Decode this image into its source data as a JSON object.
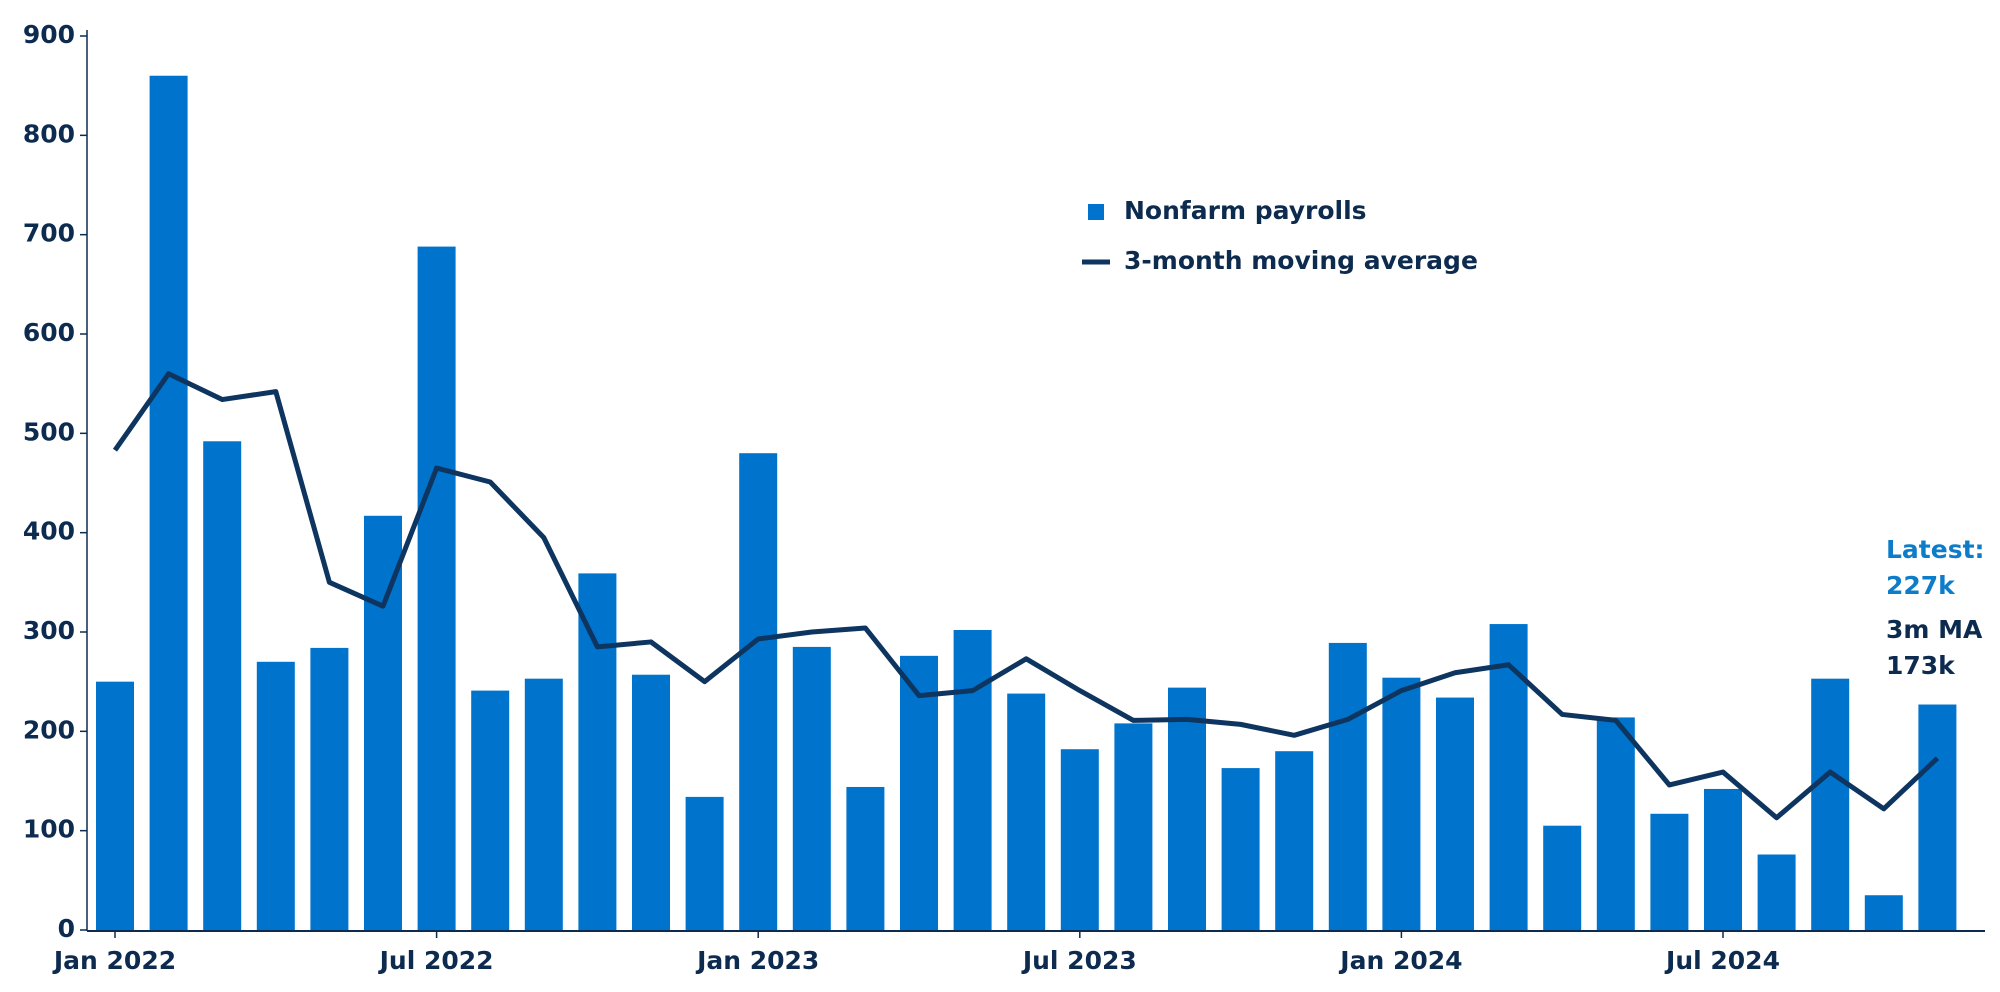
{
  "chart_data": {
    "type": "bar",
    "categories": [
      "Jan 2022",
      null,
      null,
      null,
      null,
      null,
      "Jul 2022",
      null,
      null,
      null,
      null,
      null,
      "Jan 2023",
      null,
      null,
      null,
      null,
      null,
      "Jul 2023",
      null,
      null,
      null,
      null,
      null,
      "Jan 2024",
      null,
      null,
      null,
      null,
      null,
      "Jul 2024",
      null,
      null,
      null,
      null
    ],
    "series": [
      {
        "name": "Nonfarm payrolls",
        "type": "bar",
        "color": "#0074cc",
        "values": [
          250,
          860,
          492,
          270,
          284,
          417,
          688,
          241,
          253,
          359,
          257,
          134,
          480,
          285,
          144,
          276,
          302,
          238,
          182,
          208,
          244,
          163,
          180,
          289,
          254,
          234,
          308,
          105,
          214,
          117,
          142,
          76,
          253,
          35,
          227
        ]
      },
      {
        "name": "3-month moving average",
        "type": "line",
        "color": "#0d3560",
        "values": [
          483,
          560,
          534,
          542,
          350,
          326,
          465,
          451,
          395,
          285,
          290,
          250,
          293,
          300,
          304,
          236,
          241,
          273,
          241,
          211,
          212,
          207,
          196,
          212,
          241,
          259,
          267,
          217,
          211,
          146,
          159,
          113,
          159,
          122,
          173
        ]
      }
    ],
    "ylim": [
      0,
      900
    ],
    "yticks": [
      0,
      100,
      200,
      300,
      400,
      500,
      600,
      700,
      800,
      900
    ],
    "annotations": [
      {
        "text": "Latest:",
        "color": "#0d7cc9"
      },
      {
        "text": "227k",
        "color": "#0d7cc9"
      },
      {
        "text": "3m MA",
        "color": "#0d2a4f"
      },
      {
        "text": "173k",
        "color": "#0d2a4f"
      }
    ]
  }
}
